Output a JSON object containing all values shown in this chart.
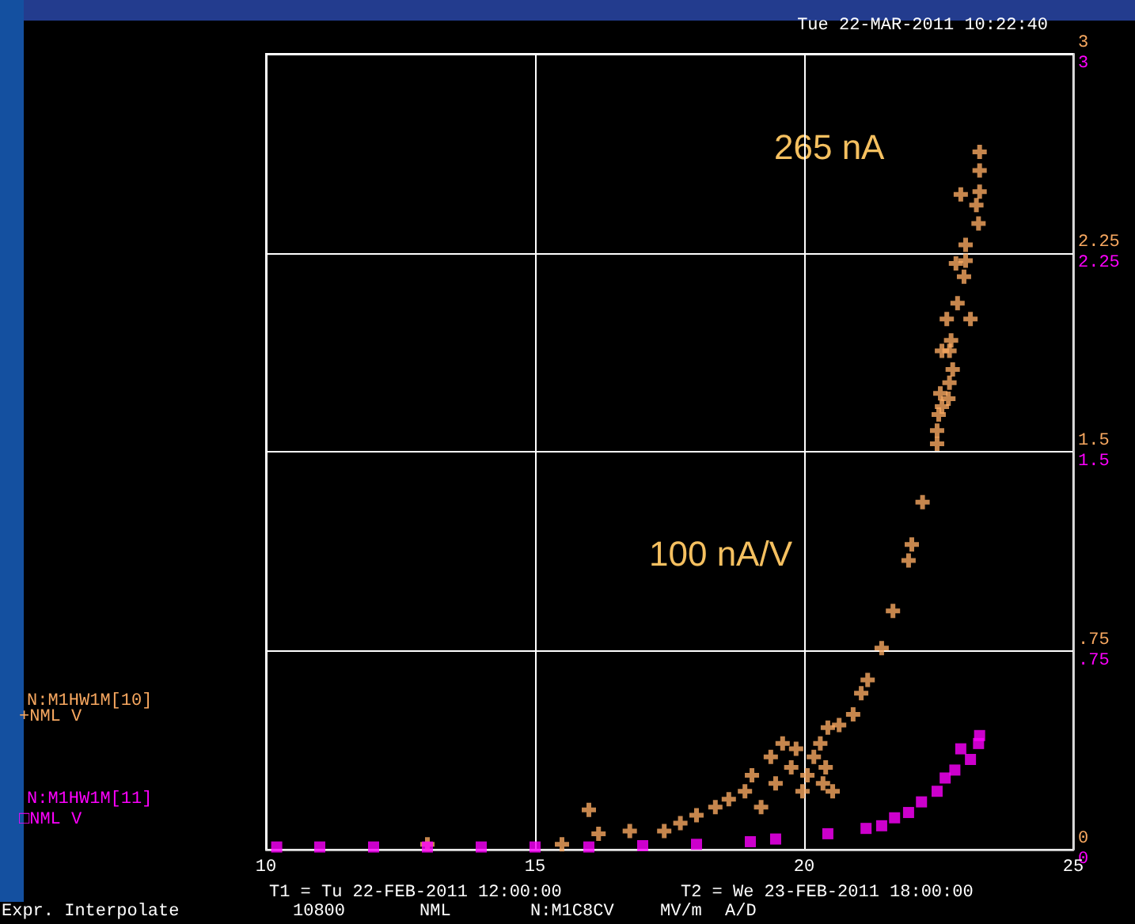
{
  "chart_data": {
    "type": "scatter",
    "title": "Tue 22-MAR-2011 10:22:40",
    "annotations": [
      "+NML V",
      "□NML V",
      "265 nA",
      "100 nA/V",
      "T1 = Tu 22-FEB-2011 12:00:00",
      "T2 = We 23-FEB-2011 18:00:00",
      "10800",
      "NML",
      "N:M1C8CV",
      "MV/m",
      "A/D",
      "Expr. Interpolate"
    ],
    "xlim": [
      10,
      25
    ],
    "xticks": [
      10,
      15,
      20,
      25
    ],
    "ylim": [
      0,
      3
    ],
    "yticks": [
      0,
      {
        "value": 0.75,
        "label": ".75"
      },
      1.5,
      2.25,
      3
    ],
    "y2lim": [
      0,
      3
    ],
    "y2ticks": [
      0,
      {
        "value": 0.75,
        "label": ".75"
      },
      1.5,
      2.25,
      3
    ],
    "grid": true,
    "legend": "left",
    "series": [
      {
        "name": "N:M1HW1M[10]",
        "color": "#f8a860",
        "marker": "cross",
        "x": [
          13,
          15.5,
          16.0,
          16.18,
          16.76,
          17.4,
          17.7,
          18.0,
          18.35,
          18.6,
          18.9,
          19.03,
          19.2,
          19.38,
          19.47,
          19.6,
          19.76,
          19.85,
          19.97,
          20.06,
          20.18,
          20.3,
          20.35,
          20.4,
          20.53,
          20.44,
          20.65,
          20.91,
          21.06,
          21.18,
          21.44,
          21.65,
          21.94,
          22.0,
          22.2,
          22.47,
          22.47,
          22.5,
          22.56,
          22.68,
          22.53,
          22.7,
          22.76,
          22.7,
          22.56,
          22.73,
          22.65,
          23.09,
          22.85,
          22.97,
          23.0,
          22.82,
          23.0,
          23.24,
          23.2,
          22.91,
          23.26,
          23.26,
          23.26
        ],
        "values": [
          0.02,
          0.02,
          0.15,
          0.06,
          0.07,
          0.07,
          0.1,
          0.13,
          0.16,
          0.19,
          0.22,
          0.28,
          0.16,
          0.35,
          0.25,
          0.4,
          0.31,
          0.38,
          0.22,
          0.28,
          0.35,
          0.4,
          0.25,
          0.31,
          0.22,
          0.46,
          0.47,
          0.51,
          0.59,
          0.64,
          0.76,
          0.9,
          1.09,
          1.15,
          1.31,
          1.53,
          1.58,
          1.64,
          1.67,
          1.7,
          1.72,
          1.76,
          1.81,
          1.88,
          1.88,
          1.92,
          2.0,
          2.0,
          2.06,
          2.16,
          2.22,
          2.21,
          2.28,
          2.36,
          2.43,
          2.47,
          2.48,
          2.56,
          2.63
        ]
      },
      {
        "name": "N:M1HW1M[11]",
        "color": "#ff00ff",
        "marker": "square",
        "axis": "y2",
        "x": [
          10.2,
          11,
          12,
          13,
          14,
          15,
          16,
          17,
          18,
          19,
          19.47,
          20.44,
          21.15,
          21.44,
          21.68,
          21.94,
          22.18,
          22.47,
          22.62,
          22.8,
          22.91,
          23.09,
          23.24,
          23.26
        ],
        "values": [
          0.01,
          0.01,
          0.01,
          0.01,
          0.01,
          0.01,
          0.01,
          0.015,
          0.02,
          0.03,
          0.04,
          0.06,
          0.08,
          0.09,
          0.12,
          0.14,
          0.18,
          0.22,
          0.27,
          0.3,
          0.38,
          0.34,
          0.4,
          0.43
        ]
      }
    ]
  }
}
